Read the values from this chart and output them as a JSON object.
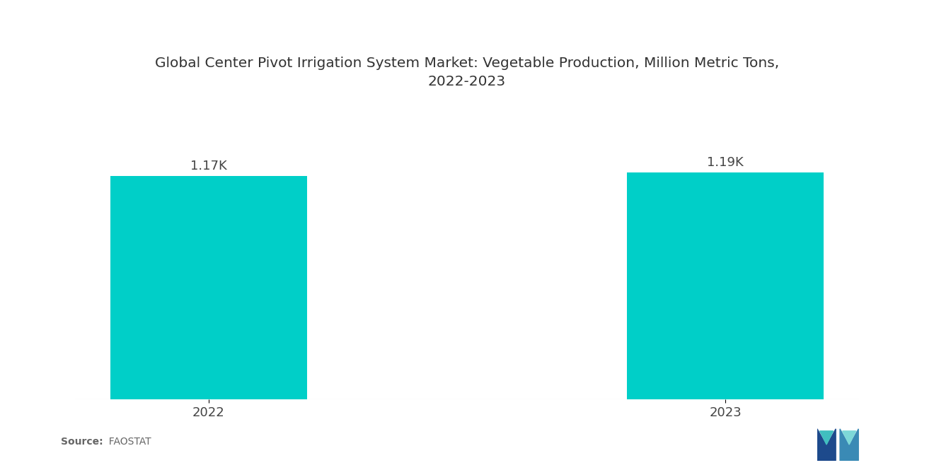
{
  "title": "Global Center Pivot Irrigation System Market: Vegetable Production, Million Metric Tons,\n2022-2023",
  "categories": [
    "2022",
    "2023"
  ],
  "values": [
    1170,
    1190
  ],
  "bar_labels": [
    "1.17K",
    "1.19K"
  ],
  "bar_color": "#00CFC8",
  "background_color": "#ffffff",
  "title_fontsize": 14.5,
  "label_fontsize": 13,
  "tick_fontsize": 13,
  "source_bold": "Source:",
  "source_normal": "  FAOSTAT",
  "ylim": [
    0,
    1550
  ],
  "bar_width": 0.38
}
